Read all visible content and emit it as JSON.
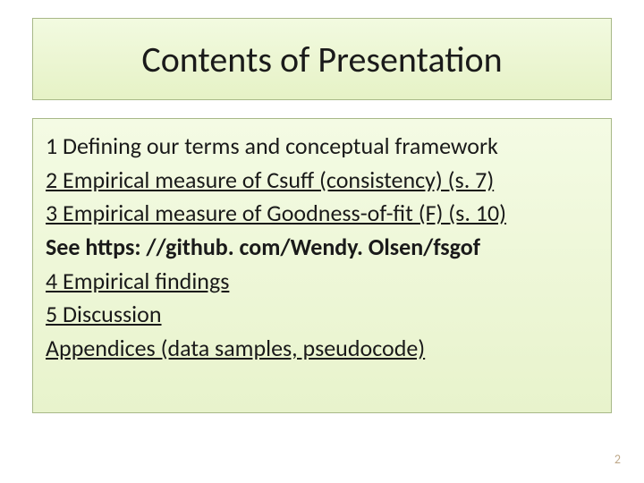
{
  "title": "Contents of Presentation",
  "lines": [
    {
      "text": "1 Defining our terms and conceptual framework",
      "underline": false,
      "bold": false
    },
    {
      "text": "2 Empirical measure of Csuff (consistency) (s. 7)",
      "underline": true,
      "bold": false
    },
    {
      "text": "3 Empirical measure of Goodness-of-fit (F) (s. 10)",
      "underline": true,
      "bold": false
    },
    {
      "text": "See https: //github. com/Wendy. Olsen/fsgof",
      "underline": false,
      "bold": true
    },
    {
      "text": "4 Empirical findings",
      "underline": true,
      "bold": false
    },
    {
      "text": "5 Discussion",
      "underline": true,
      "bold": false
    },
    {
      "text": "Appendices (data samples, pseudocode)",
      "underline": true,
      "bold": false
    }
  ],
  "page_number": "2",
  "colors": {
    "title_bg_top": "#f2fae0",
    "title_bg_bottom": "#e6f2c6",
    "content_bg_top": "#f4fbe4",
    "content_bg_bottom": "#e8f3cc",
    "border": "#a8b888",
    "text": "#1a1a1a",
    "page_num": "#bfa98a"
  },
  "typography": {
    "title_fontsize": 40,
    "body_fontsize": 26,
    "page_num_fontsize": 14,
    "font_family": "Calibri"
  },
  "layout": {
    "slide_width": 720,
    "slide_height": 540
  }
}
